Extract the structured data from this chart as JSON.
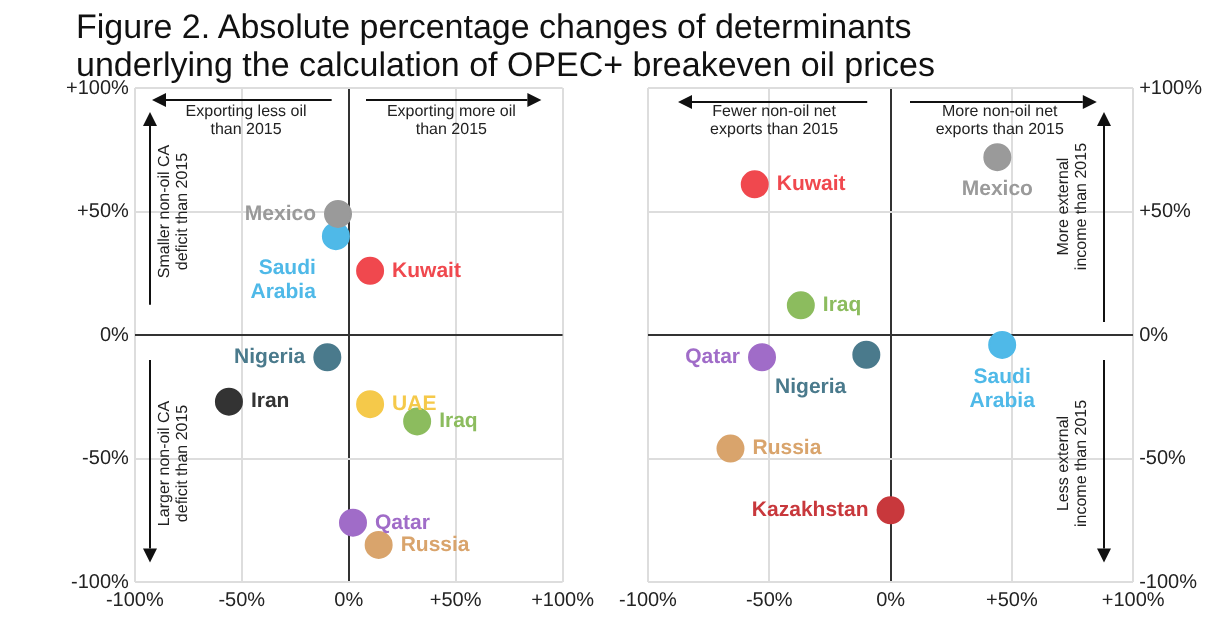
{
  "chart_data": [
    {
      "type": "scatter",
      "title": "Figure 2. Absolute percentage changes of determinants underlying the calculation of OPEC+ breakeven oil prices",
      "xlim": [
        -100,
        100
      ],
      "ylim": [
        -100,
        100
      ],
      "xticks": [
        {
          "value": -100,
          "label": "-100%"
        },
        {
          "value": -50,
          "label": "-50%"
        },
        {
          "value": 0,
          "label": "0%"
        },
        {
          "value": 50,
          "label": "+50%"
        },
        {
          "value": 100,
          "label": "+100%"
        }
      ],
      "yticks": [
        {
          "value": -100,
          "label": "-100%"
        },
        {
          "value": -50,
          "label": "-50%"
        },
        {
          "value": 0,
          "label": "0%"
        },
        {
          "value": 50,
          "label": "+50%"
        },
        {
          "value": 100,
          "label": "+100%"
        }
      ],
      "grid": true,
      "marker": "circle",
      "legend": false,
      "annotations": [
        "Exporting less oil than 2015",
        "Exporting more oil than 2015",
        "Smaller non-oil CA deficit than 2015",
        "Larger non-oil CA deficit than 2015"
      ],
      "series": [
        {
          "name": "Mexico",
          "color": "#9a9a9a",
          "x": [
            -5
          ],
          "values": [
            49
          ]
        },
        {
          "name": "Saudi Arabia",
          "color": "#4fb9e8",
          "x": [
            -6
          ],
          "values": [
            40
          ]
        },
        {
          "name": "Kuwait",
          "color": "#f0484e",
          "x": [
            10
          ],
          "values": [
            26
          ]
        },
        {
          "name": "Nigeria",
          "color": "#4a7a8c",
          "x": [
            -10
          ],
          "values": [
            -9
          ]
        },
        {
          "name": "Iran",
          "color": "#333333",
          "x": [
            -56
          ],
          "values": [
            -27
          ]
        },
        {
          "name": "UAE",
          "color": "#f5c94a",
          "x": [
            10
          ],
          "values": [
            -28
          ]
        },
        {
          "name": "Iraq",
          "color": "#8cbc5e",
          "x": [
            32
          ],
          "values": [
            -35
          ]
        },
        {
          "name": "Qatar",
          "color": "#a06cc8",
          "x": [
            2
          ],
          "values": [
            -76
          ]
        },
        {
          "name": "Russia",
          "color": "#d9a46c",
          "x": [
            14
          ],
          "values": [
            -85
          ]
        }
      ]
    },
    {
      "type": "scatter",
      "xlim": [
        -100,
        100
      ],
      "ylim": [
        -100,
        100
      ],
      "xticks": [
        {
          "value": -100,
          "label": "-100%"
        },
        {
          "value": -50,
          "label": "-50%"
        },
        {
          "value": 0,
          "label": "0%"
        },
        {
          "value": 50,
          "label": "+50%"
        },
        {
          "value": 100,
          "label": "+100%"
        }
      ],
      "yticks": [
        {
          "value": -100,
          "label": "-100%"
        },
        {
          "value": -50,
          "label": "-50%"
        },
        {
          "value": 0,
          "label": "0%"
        },
        {
          "value": 50,
          "label": "+50%"
        },
        {
          "value": 100,
          "label": "+100%"
        }
      ],
      "grid": true,
      "marker": "circle",
      "legend": false,
      "annotations": [
        "Fewer non-oil net exports than 2015",
        "More non-oil net exports than 2015",
        "More external income than 2015",
        "Less external income than 2015"
      ],
      "series": [
        {
          "name": "Kuwait",
          "color": "#f0484e",
          "x": [
            -56
          ],
          "values": [
            61
          ]
        },
        {
          "name": "Mexico",
          "color": "#9a9a9a",
          "x": [
            44
          ],
          "values": [
            72
          ]
        },
        {
          "name": "Iraq",
          "color": "#8cbc5e",
          "x": [
            -37
          ],
          "values": [
            12
          ]
        },
        {
          "name": "Qatar",
          "color": "#a06cc8",
          "x": [
            -53
          ],
          "values": [
            -9
          ]
        },
        {
          "name": "Nigeria",
          "color": "#4a7a8c",
          "x": [
            -10
          ],
          "values": [
            -8
          ]
        },
        {
          "name": "Saudi Arabia",
          "color": "#4fb9e8",
          "x": [
            46
          ],
          "values": [
            -4
          ]
        },
        {
          "name": "Russia",
          "color": "#d9a46c",
          "x": [
            -66
          ],
          "values": [
            -46
          ]
        },
        {
          "name": "Kazakhstan",
          "color": "#c8383c",
          "x": [
            0
          ],
          "values": [
            -71
          ]
        }
      ]
    }
  ]
}
